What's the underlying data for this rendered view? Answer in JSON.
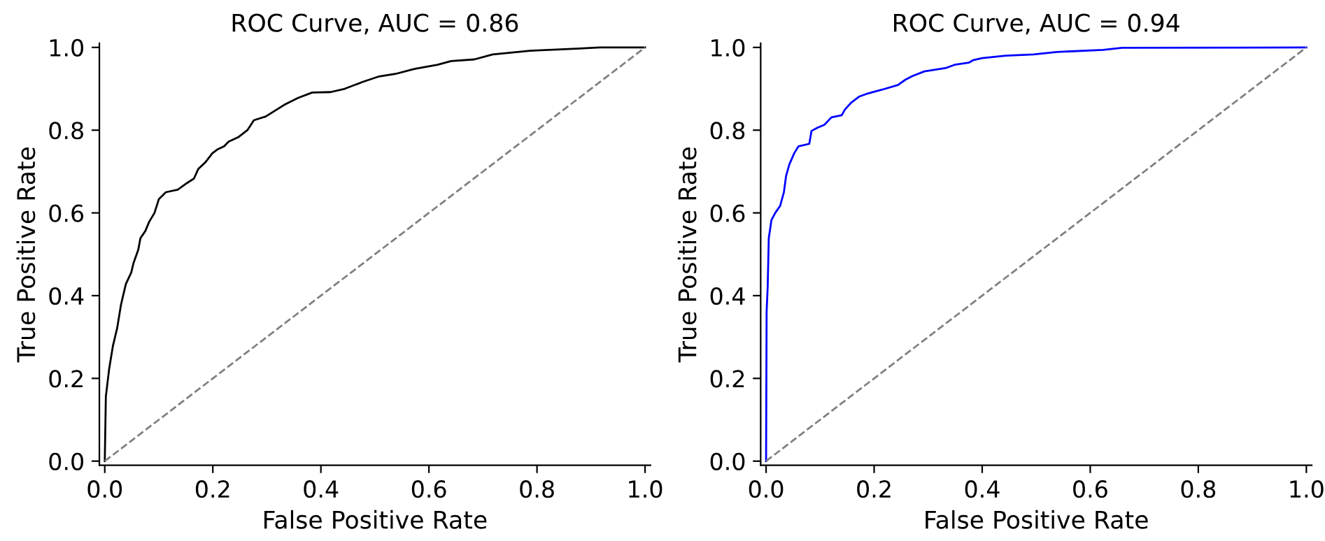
{
  "chart_data": [
    {
      "type": "line",
      "title": "ROC Curve, AUC = 0.86",
      "xlabel": "False Positive Rate",
      "ylabel": "True Positive Rate",
      "xlim": [
        -0.01,
        1.01
      ],
      "ylim": [
        -0.01,
        1.01
      ],
      "xticks": [
        {
          "value": 0,
          "label": "0.0"
        },
        {
          "value": 0.2,
          "label": "0.2"
        },
        {
          "value": 0.4,
          "label": "0.4"
        },
        {
          "value": 0.6,
          "label": "0.6"
        },
        {
          "value": 0.8,
          "label": "0.8"
        },
        {
          "value": 1,
          "label": "1.0"
        }
      ],
      "yticks": [
        {
          "value": 0,
          "label": "0.0"
        },
        {
          "value": 0.2,
          "label": "0.2"
        },
        {
          "value": 0.4,
          "label": "0.4"
        },
        {
          "value": 0.6,
          "label": "0.6"
        },
        {
          "value": 0.8,
          "label": "0.8"
        },
        {
          "value": 1,
          "label": "1.0"
        }
      ],
      "grid": false,
      "series": [
        {
          "color": "#000000",
          "line_style": "solid",
          "x": [
            0,
            0.002,
            0.008,
            0.015,
            0.023,
            0.03,
            0.039,
            0.049,
            0.053,
            0.062,
            0.066,
            0.075,
            0.082,
            0.092,
            0.1,
            0.113,
            0.135,
            0.152,
            0.165,
            0.173,
            0.186,
            0.199,
            0.208,
            0.221,
            0.229,
            0.247,
            0.264,
            0.276,
            0.298,
            0.315,
            0.332,
            0.358,
            0.384,
            0.418,
            0.444,
            0.478,
            0.508,
            0.538,
            0.573,
            0.616,
            0.641,
            0.684,
            0.718,
            0.787,
            0.873,
            0.916,
            1
          ],
          "values": [
            0,
            0.156,
            0.222,
            0.278,
            0.322,
            0.378,
            0.428,
            0.456,
            0.478,
            0.511,
            0.539,
            0.556,
            0.578,
            0.6,
            0.633,
            0.65,
            0.656,
            0.672,
            0.683,
            0.706,
            0.722,
            0.744,
            0.753,
            0.761,
            0.772,
            0.783,
            0.8,
            0.824,
            0.833,
            0.847,
            0.861,
            0.878,
            0.891,
            0.892,
            0.9,
            0.917,
            0.93,
            0.936,
            0.948,
            0.958,
            0.967,
            0.971,
            0.983,
            0.992,
            0.997,
            1,
            1
          ]
        },
        {
          "color": "#808080",
          "line_style": "dashed",
          "x": [
            0,
            1
          ],
          "values": [
            0,
            1
          ]
        }
      ]
    },
    {
      "type": "line",
      "title": "ROC Curve, AUC = 0.94",
      "xlabel": "False Positive Rate",
      "ylabel": "True Positive Rate",
      "xlim": [
        -0.01,
        1.01
      ],
      "ylim": [
        -0.01,
        1.01
      ],
      "xticks": [
        {
          "value": 0,
          "label": "0.0"
        },
        {
          "value": 0.2,
          "label": "0.2"
        },
        {
          "value": 0.4,
          "label": "0.4"
        },
        {
          "value": 0.6,
          "label": "0.6"
        },
        {
          "value": 0.8,
          "label": "0.8"
        },
        {
          "value": 1,
          "label": "1.0"
        }
      ],
      "yticks": [
        {
          "value": 0,
          "label": "0.0"
        },
        {
          "value": 0.2,
          "label": "0.2"
        },
        {
          "value": 0.4,
          "label": "0.4"
        },
        {
          "value": 0.6,
          "label": "0.6"
        },
        {
          "value": 0.8,
          "label": "0.8"
        },
        {
          "value": 1,
          "label": "1.0"
        }
      ],
      "grid": false,
      "series": [
        {
          "color": "#0000ff",
          "line_style": "solid",
          "x": [
            0,
            0.001,
            0.003,
            0.005,
            0.01,
            0.017,
            0.026,
            0.033,
            0.037,
            0.043,
            0.052,
            0.06,
            0.08,
            0.084,
            0.095,
            0.108,
            0.121,
            0.14,
            0.146,
            0.158,
            0.172,
            0.189,
            0.215,
            0.244,
            0.258,
            0.271,
            0.293,
            0.332,
            0.349,
            0.375,
            0.383,
            0.4,
            0.444,
            0.495,
            0.538,
            0.624,
            0.659,
            1
          ],
          "values": [
            0,
            0.361,
            0.422,
            0.539,
            0.583,
            0.6,
            0.617,
            0.65,
            0.689,
            0.717,
            0.744,
            0.761,
            0.767,
            0.798,
            0.806,
            0.813,
            0.831,
            0.836,
            0.85,
            0.867,
            0.881,
            0.889,
            0.898,
            0.909,
            0.922,
            0.931,
            0.942,
            0.95,
            0.958,
            0.963,
            0.969,
            0.974,
            0.98,
            0.983,
            0.989,
            0.994,
            0.999,
            1
          ]
        },
        {
          "color": "#808080",
          "line_style": "dashed",
          "x": [
            0,
            1
          ],
          "values": [
            0,
            1
          ]
        }
      ]
    }
  ]
}
